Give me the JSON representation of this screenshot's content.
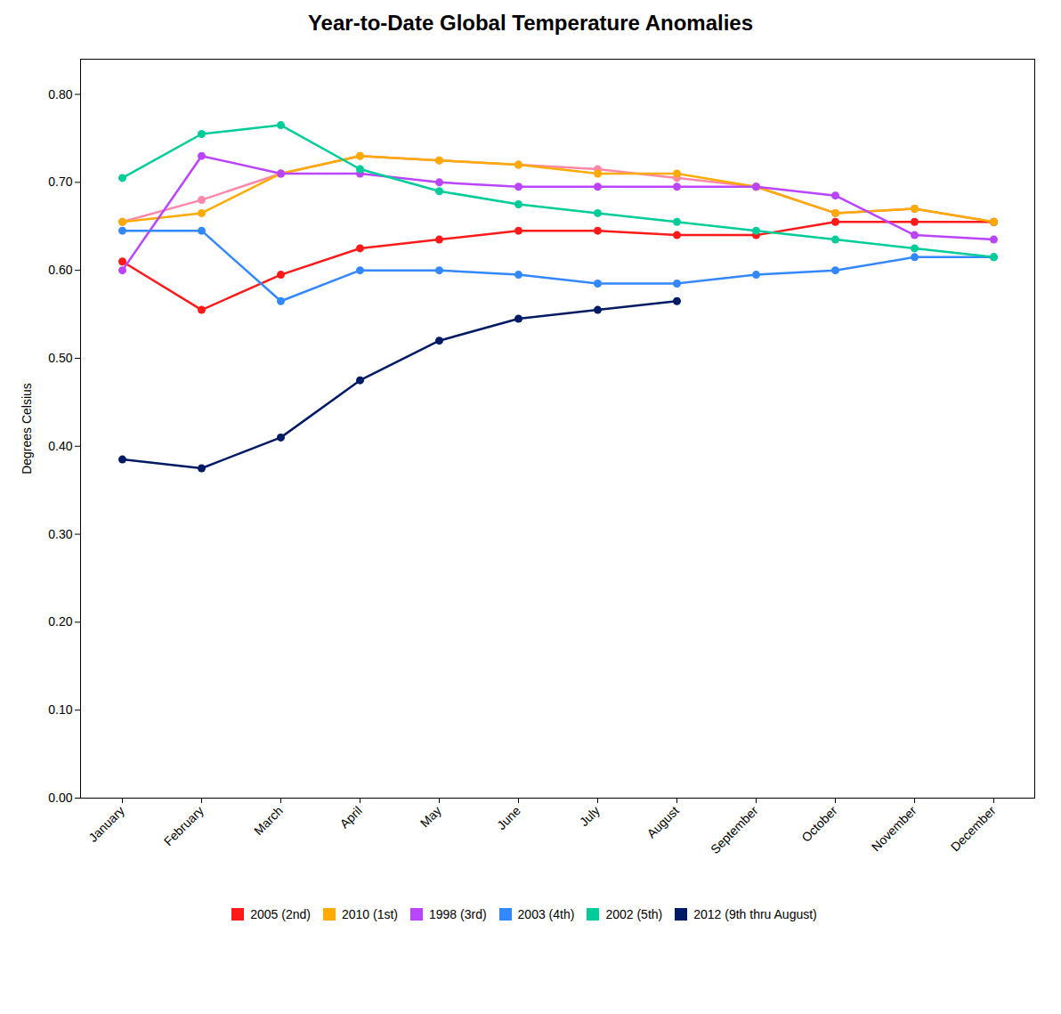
{
  "chart_data": {
    "type": "line",
    "title": "Year-to-Date Global Temperature Anomalies",
    "ylabel": "Degrees Celsius",
    "categories": [
      "January",
      "February",
      "March",
      "April",
      "May",
      "June",
      "July",
      "August",
      "September",
      "October",
      "November",
      "December"
    ],
    "series": [
      {
        "color": "#ff88aa",
        "values": [
          0.655,
          0.68,
          0.71,
          0.73,
          0.725,
          0.72,
          0.715,
          0.705,
          0.695,
          0.665,
          0.67,
          0.655
        ]
      },
      {
        "name": "2005 (2nd)",
        "color": "#ff1a1a",
        "values": [
          0.61,
          0.555,
          0.595,
          0.625,
          0.635,
          0.645,
          0.645,
          0.64,
          0.64,
          0.655,
          0.655,
          0.655
        ]
      },
      {
        "name": "2010 (1st)",
        "color": "#ffaa00",
        "values": [
          0.655,
          0.665,
          0.71,
          0.73,
          0.725,
          0.72,
          0.71,
          0.71,
          0.695,
          0.665,
          0.67,
          0.655
        ]
      },
      {
        "name": "1998 (3rd)",
        "color": "#bb44ff",
        "values": [
          0.6,
          0.73,
          0.71,
          0.71,
          0.7,
          0.695,
          0.695,
          0.695,
          0.695,
          0.685,
          0.64,
          0.635
        ]
      },
      {
        "name": "2003 (4th)",
        "color": "#3388ff",
        "values": [
          0.645,
          0.645,
          0.565,
          0.6,
          0.6,
          0.595,
          0.585,
          0.585,
          0.595,
          0.6,
          0.615,
          0.615
        ]
      },
      {
        "name": "2002 (5th)",
        "color": "#00cc99",
        "values": [
          0.705,
          0.755,
          0.765,
          0.715,
          0.69,
          0.675,
          0.665,
          0.655,
          0.645,
          0.635,
          0.625,
          0.615
        ]
      },
      {
        "name": "2012 (9th thru August)",
        "color": "#001a66",
        "values": [
          0.385,
          0.375,
          0.41,
          0.475,
          0.52,
          0.545,
          0.555,
          0.565,
          null,
          null,
          null,
          null
        ]
      }
    ],
    "ylim": [
      0.0,
      0.84
    ],
    "yticks": [
      {
        "value": 0.0,
        "label": "0.00"
      },
      {
        "value": 0.1,
        "label": "0.10"
      },
      {
        "value": 0.2,
        "label": "0.20"
      },
      {
        "value": 0.3,
        "label": "0.30"
      },
      {
        "value": 0.4,
        "label": "0.40"
      },
      {
        "value": 0.5,
        "label": "0.50"
      },
      {
        "value": 0.6,
        "label": "0.60"
      },
      {
        "value": 0.7,
        "label": "0.70"
      },
      {
        "value": 0.8,
        "label": "0.80"
      }
    ],
    "marker": "circle",
    "grid": false,
    "legend": "bottom"
  }
}
